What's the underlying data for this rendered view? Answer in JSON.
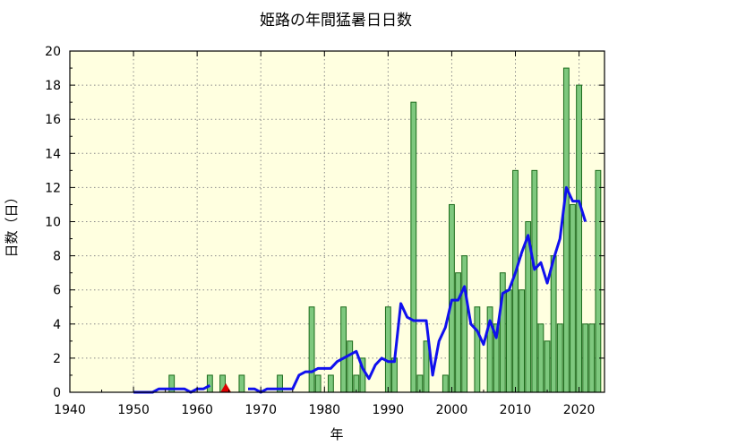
{
  "chart_data": {
    "type": "bar",
    "title": "姫路の年間猛暑日日数",
    "xlabel": "年",
    "ylabel": "日数（日）",
    "xlim": [
      1940,
      2024
    ],
    "ylim": [
      0,
      20
    ],
    "xticks": [
      "1940",
      "1950",
      "1960",
      "1970",
      "1980",
      "1990",
      "2000",
      "2010",
      "2020"
    ],
    "yticks": [
      "0",
      "2",
      "4",
      "6",
      "8",
      "10",
      "12",
      "14",
      "16",
      "18",
      "20"
    ],
    "grid": true,
    "bar_series": {
      "years": [
        1950,
        1951,
        1952,
        1953,
        1954,
        1955,
        1956,
        1957,
        1958,
        1959,
        1960,
        1961,
        1962,
        1963,
        1964,
        1965,
        1966,
        1967,
        1968,
        1969,
        1970,
        1971,
        1972,
        1973,
        1974,
        1975,
        1976,
        1977,
        1978,
        1979,
        1980,
        1981,
        1982,
        1983,
        1984,
        1985,
        1986,
        1987,
        1988,
        1989,
        1990,
        1991,
        1992,
        1993,
        1994,
        1995,
        1996,
        1997,
        1998,
        1999,
        2000,
        2001,
        2002,
        2003,
        2004,
        2005,
        2006,
        2007,
        2008,
        2009,
        2010,
        2011,
        2012,
        2013,
        2014,
        2015,
        2016,
        2017,
        2018,
        2019,
        2020,
        2021,
        2022,
        2023
      ],
      "values": [
        0,
        0,
        0,
        0,
        0,
        0,
        1,
        0,
        0,
        0,
        0,
        0,
        1,
        0,
        1,
        0,
        0,
        1,
        0,
        0,
        0,
        0,
        0,
        1,
        0,
        0,
        0,
        0,
        5,
        1,
        0,
        1,
        0,
        5,
        3,
        1,
        2,
        0,
        0,
        0,
        5,
        2,
        0,
        0,
        17,
        1,
        3,
        0,
        0,
        1,
        11,
        7,
        8,
        0,
        5,
        0,
        5,
        4,
        7,
        6,
        13,
        6,
        10,
        13,
        4,
        3,
        8,
        4,
        19,
        11,
        18,
        4,
        4,
        13
      ]
    },
    "moving_average": {
      "segments": [
        {
          "x": [
            1950,
            1951,
            1952,
            1953,
            1954,
            1955,
            1956,
            1957,
            1958,
            1959,
            1960,
            1961,
            1962
          ],
          "y": [
            0,
            0,
            0,
            0,
            0.2,
            0.2,
            0.2,
            0.2,
            0.2,
            0,
            0.2,
            0.2,
            0.4
          ]
        },
        {
          "x": [
            1968,
            1969,
            1970,
            1971,
            1972,
            1973,
            1974,
            1975,
            1976,
            1977,
            1978,
            1979,
            1980,
            1981,
            1982,
            1983,
            1984,
            1985,
            1986,
            1987,
            1988,
            1989,
            1990,
            1991,
            1992,
            1993,
            1994,
            1995,
            1996,
            1997,
            1998,
            1999,
            2000,
            2001,
            2002,
            2003,
            2004,
            2005,
            2006,
            2007,
            2008,
            2009,
            2010,
            2011,
            2012,
            2013,
            2014,
            2015,
            2016,
            2017,
            2018,
            2019,
            2020,
            2021
          ],
          "y": [
            0.2,
            0.2,
            0,
            0.2,
            0.2,
            0.2,
            0.2,
            0.2,
            1,
            1.2,
            1.2,
            1.4,
            1.4,
            1.4,
            1.8,
            2,
            2.2,
            2.4,
            1.4,
            0.8,
            1.6,
            2,
            1.8,
            1.8,
            5.2,
            4.4,
            4.2,
            4.2,
            4.2,
            1,
            3,
            3.8,
            5.4,
            5.4,
            6.2,
            4,
            3.6,
            2.8,
            4.2,
            3.2,
            5.8,
            6,
            7,
            8.2,
            9.2,
            7.2,
            7.6,
            6.4,
            7.8,
            9,
            12,
            11.2,
            11.2,
            10
          ]
        }
      ]
    },
    "marker": {
      "x": 1964.5,
      "y": 0
    },
    "colors": {
      "bar_fill": "#7ec87e",
      "bar_stroke": "#1a6a1a",
      "line": "#1010ee",
      "marker": "#dd0000",
      "plot_bg": "#ffffe0",
      "grid": "#8a8a8a"
    }
  }
}
